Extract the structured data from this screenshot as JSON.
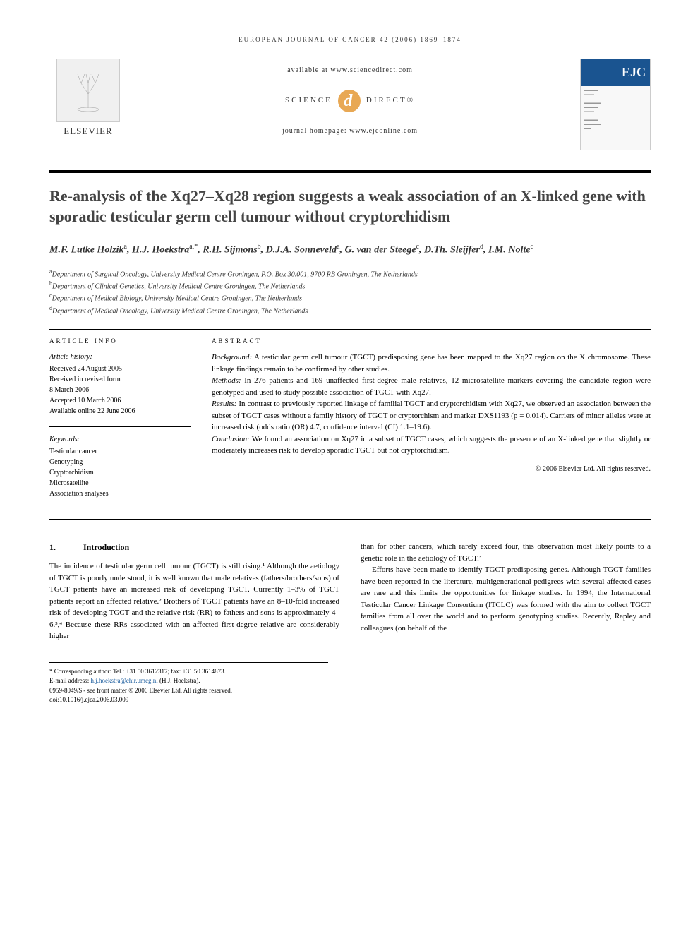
{
  "running_header": "EUROPEAN JOURNAL OF CANCER 42 (2006) 1869–1874",
  "banner": {
    "elsevier": "ELSEVIER",
    "available": "available at www.sciencedirect.com",
    "sd_left": "SCIENCE",
    "sd_right": "DIRECT®",
    "homepage": "journal homepage: www.ejconline.com",
    "ejc": "EJC"
  },
  "title": "Re-analysis of the Xq27–Xq28 region suggests a weak association of an X-linked gene with sporadic testicular germ cell tumour without cryptorchidism",
  "authors_html": "M.F. Lutke Holzik<sup>a</sup>, H.J. Hoekstra<sup>a,*</sup>, R.H. Sijmons<sup>b</sup>, D.J.A. Sonneveld<sup>a</sup>, G. van der Steege<sup>c</sup>, D.Th. Sleijfer<sup>d</sup>, I.M. Nolte<sup>c</sup>",
  "affiliations": {
    "a": "Department of Surgical Oncology, University Medical Centre Groningen, P.O. Box 30.001, 9700 RB Groningen, The Netherlands",
    "b": "Department of Clinical Genetics, University Medical Centre Groningen, The Netherlands",
    "c": "Department of Medical Biology, University Medical Centre Groningen, The Netherlands",
    "d": "Department of Medical Oncology, University Medical Centre Groningen, The Netherlands"
  },
  "article_info": {
    "heading": "ARTICLE INFO",
    "history_label": "Article history:",
    "received": "Received 24 August 2005",
    "revised1": "Received in revised form",
    "revised2": "8 March 2006",
    "accepted": "Accepted 10 March 2006",
    "online": "Available online 22 June 2006",
    "keywords_label": "Keywords:",
    "keywords": [
      "Testicular cancer",
      "Genotyping",
      "Cryptorchidism",
      "Microsatellite",
      "Association analyses"
    ]
  },
  "abstract": {
    "heading": "ABSTRACT",
    "background_label": "Background:",
    "background": "A testicular germ cell tumour (TGCT) predisposing gene has been mapped to the Xq27 region on the X chromosome. These linkage findings remain to be confirmed by other studies.",
    "methods_label": "Methods:",
    "methods": "In 276 patients and 169 unaffected first-degree male relatives, 12 microsatellite markers covering the candidate region were genotyped and used to study possible association of TGCT with Xq27.",
    "results_label": "Results:",
    "results": "In contrast to previously reported linkage of familial TGCT and cryptorchidism with Xq27, we observed an association between the subset of TGCT cases without a family history of TGCT or cryptorchism and marker DXS1193 (p = 0.014). Carriers of minor alleles were at increased risk (odds ratio (OR) 4.7, confidence interval (CI) 1.1–19.6).",
    "conclusion_label": "Conclusion:",
    "conclusion": "We found an association on Xq27 in a subset of TGCT cases, which suggests the presence of an X-linked gene that slightly or moderately increases risk to develop sporadic TGCT but not cryptorchidism.",
    "copyright": "© 2006 Elsevier Ltd. All rights reserved."
  },
  "body": {
    "section_num": "1.",
    "section_title": "Introduction",
    "col1_p1": "The incidence of testicular germ cell tumour (TGCT) is still rising.¹ Although the aetiology of TGCT is poorly understood, it is well known that male relatives (fathers/brothers/sons) of TGCT patients have an increased risk of developing TGCT. Currently 1–3% of TGCT patients report an affected relative.² Brothers of TGCT patients have an 8–10-fold increased risk of developing TGCT and the relative risk (RR) to fathers and sons is approximately 4–6.³,⁴ Because these RRs associated with an affected first-degree relative are considerably higher",
    "col2_p1": "than for other cancers, which rarely exceed four, this observation most likely points to a genetic role in the aetiology of TGCT.³",
    "col2_p2": "Efforts have been made to identify TGCT predisposing genes. Although TGCT families have been reported in the literature, multigenerational pedigrees with several affected cases are rare and this limits the opportunities for linkage studies. In 1994, the International Testicular Cancer Linkage Consortium (ITCLC) was formed with the aim to collect TGCT families from all over the world and to perform genotyping studies. Recently, Rapley and colleagues (on behalf of the"
  },
  "footer": {
    "corr": "* Corresponding author: Tel.: +31 50 3612317; fax: +31 50 3614873.",
    "email_label": "E-mail address:",
    "email": "h.j.hoekstra@chir.umcg.nl",
    "email_who": "(H.J. Hoekstra).",
    "issn": "0959-8049/$ - see front matter © 2006 Elsevier Ltd. All rights reserved.",
    "doi": "doi:10.1016/j.ejca.2006.03.009"
  }
}
